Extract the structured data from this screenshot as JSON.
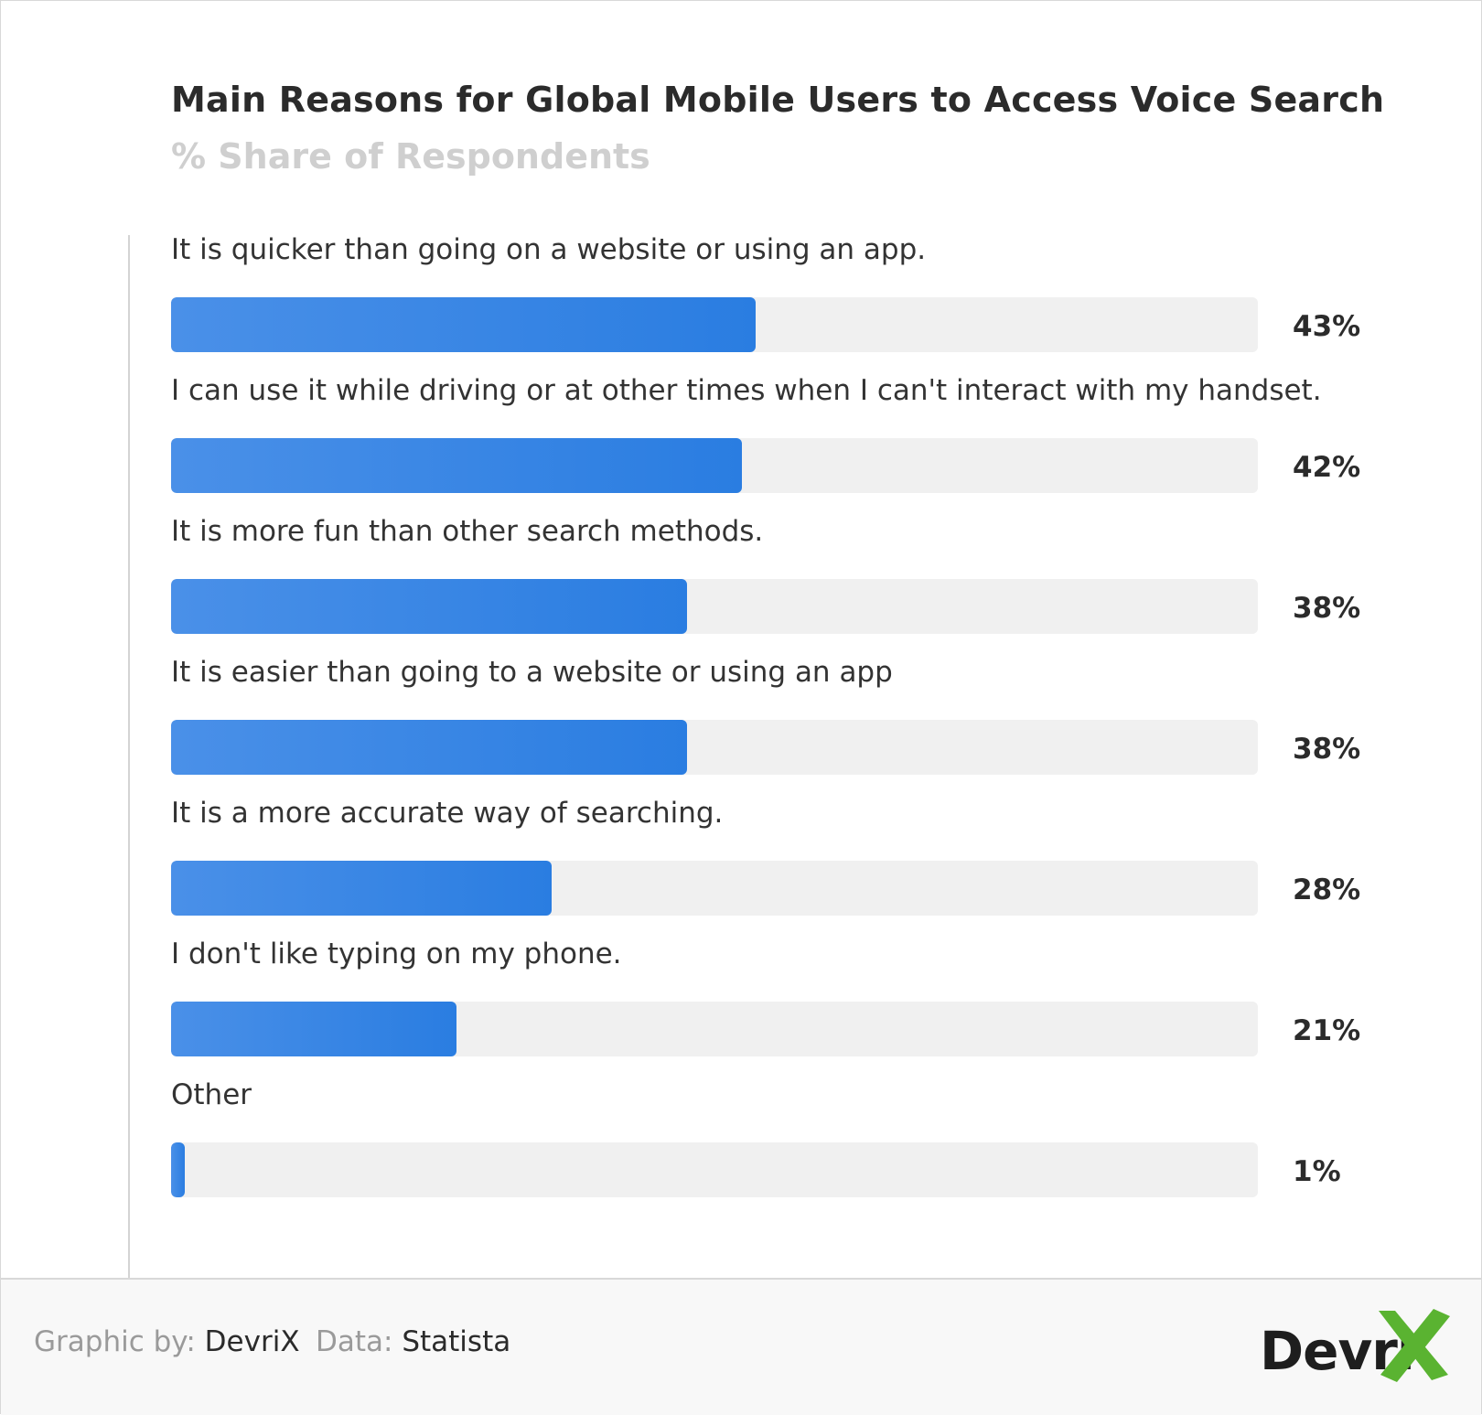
{
  "chart_data": {
    "type": "bar",
    "orientation": "horizontal",
    "title": "Main Reasons for Global Mobile Users to Access Voice Search",
    "subtitle": "% Share of Respondents",
    "categories": [
      "It is quicker than going on a website or using an app.",
      "I can use it while driving or at other times when I can't interact with my handset.",
      "It is more fun than other search methods.",
      "It is easier than going to a website or using an app",
      "It is a more accurate way of searching.",
      "I don't like typing on my phone.",
      "Other"
    ],
    "values": [
      43,
      42,
      38,
      38,
      28,
      21,
      1
    ],
    "value_labels": [
      "43%",
      "42%",
      "38%",
      "38%",
      "28%",
      "21%",
      "1%"
    ],
    "xlim": [
      0,
      80
    ],
    "grid": false,
    "legend": "none",
    "colors": {
      "bar": "#2a7de1",
      "track": "#f0f0f0"
    }
  },
  "footer": {
    "graphic_label": "Graphic by:",
    "graphic_value": "DevriX",
    "data_label": "Data:",
    "data_value": "Statista"
  },
  "logo": {
    "text": "Devri",
    "accent_color": "#5ab331"
  }
}
